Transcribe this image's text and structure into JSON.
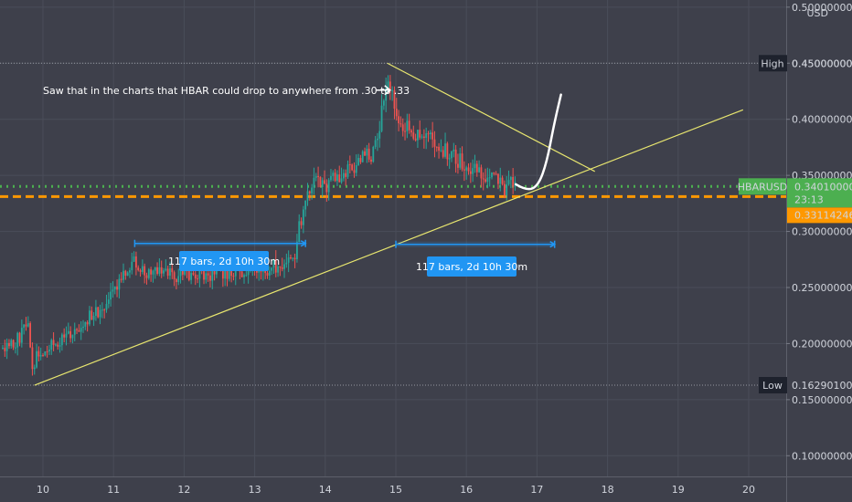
{
  "chart_data": {
    "type": "candlestick",
    "symbol": "HBARUSD",
    "currency": "USD",
    "x_ticks": [
      "10",
      "11",
      "12",
      "13",
      "14",
      "15",
      "16",
      "17",
      "18",
      "19",
      "20"
    ],
    "y_ticks": [
      "0.10000000",
      "0.15000000",
      "0.20000000",
      "0.25000000",
      "0.30000000",
      "0.35000000",
      "0.40000000",
      "0.45000000",
      "0.50000000"
    ],
    "ylim": [
      0.078,
      0.51
    ],
    "xlim": [
      9.43,
      20.5
    ],
    "grid": true,
    "high": {
      "label": "High",
      "value": "0.45000000",
      "price": 0.45
    },
    "low": {
      "label": "Low",
      "value": "0.16290100",
      "price": 0.1629
    },
    "last_price": {
      "symbol": "HBARUSD",
      "value": "0.34010000",
      "price": 0.3401,
      "countdown": "23:13",
      "color": "#4caf50"
    },
    "support_level": {
      "value": "0.33114246",
      "price": 0.3311,
      "color": "#ff9800"
    },
    "price_path": [
      [
        9.43,
        0.196
      ],
      [
        9.6,
        0.2
      ],
      [
        9.72,
        0.212
      ],
      [
        9.78,
        0.222
      ],
      [
        9.82,
        0.196
      ],
      [
        9.86,
        0.176
      ],
      [
        9.9,
        0.192
      ],
      [
        10.05,
        0.196
      ],
      [
        10.2,
        0.199
      ],
      [
        10.35,
        0.205
      ],
      [
        10.48,
        0.214
      ],
      [
        10.6,
        0.222
      ],
      [
        10.75,
        0.227
      ],
      [
        10.9,
        0.235
      ],
      [
        11.02,
        0.247
      ],
      [
        11.1,
        0.26
      ],
      [
        11.18,
        0.268
      ],
      [
        11.3,
        0.275
      ],
      [
        11.42,
        0.262
      ],
      [
        11.55,
        0.265
      ],
      [
        11.7,
        0.269
      ],
      [
        11.85,
        0.258
      ],
      [
        12.0,
        0.262
      ],
      [
        12.15,
        0.265
      ],
      [
        12.3,
        0.26
      ],
      [
        12.5,
        0.264
      ],
      [
        12.7,
        0.265
      ],
      [
        12.9,
        0.263
      ],
      [
        13.1,
        0.266
      ],
      [
        13.3,
        0.268
      ],
      [
        13.45,
        0.272
      ],
      [
        13.55,
        0.275
      ],
      [
        13.62,
        0.3
      ],
      [
        13.7,
        0.318
      ],
      [
        13.78,
        0.34
      ],
      [
        13.86,
        0.346
      ],
      [
        13.95,
        0.34
      ],
      [
        14.1,
        0.345
      ],
      [
        14.25,
        0.348
      ],
      [
        14.4,
        0.356
      ],
      [
        14.55,
        0.366
      ],
      [
        14.68,
        0.37
      ],
      [
        14.76,
        0.385
      ],
      [
        14.82,
        0.415
      ],
      [
        14.86,
        0.435
      ],
      [
        14.92,
        0.425
      ],
      [
        15.0,
        0.405
      ],
      [
        15.1,
        0.392
      ],
      [
        15.2,
        0.39
      ],
      [
        15.35,
        0.386
      ],
      [
        15.5,
        0.38
      ],
      [
        15.65,
        0.374
      ],
      [
        15.8,
        0.367
      ],
      [
        15.95,
        0.362
      ],
      [
        16.1,
        0.356
      ],
      [
        16.25,
        0.353
      ],
      [
        16.35,
        0.346
      ],
      [
        16.45,
        0.342
      ],
      [
        16.55,
        0.338
      ],
      [
        16.62,
        0.342
      ],
      [
        16.7,
        0.341
      ]
    ],
    "x_range_mark": {
      "x": [
        11.3,
        13.72
      ],
      "price": 0.2893,
      "label": "117 bars, 2d 10h 30m"
    },
    "projected_range_mark": {
      "x": [
        15.0,
        17.25
      ],
      "price": 0.2885,
      "label": "117 bars, 2d 10h 30m"
    },
    "lines": [
      {
        "name": "uptrend",
        "from": [
          9.88,
          0.1629
        ],
        "to": [
          19.92,
          0.4085
        ],
        "color": "#e8e66f"
      },
      {
        "name": "downtrend",
        "from": [
          14.88,
          0.45
        ],
        "to": [
          17.82,
          0.3535
        ],
        "color": "#e8e66f"
      }
    ],
    "projection": [
      [
        16.7,
        0.342
      ],
      [
        16.86,
        0.336
      ],
      [
        17.02,
        0.341
      ],
      [
        17.14,
        0.362
      ],
      [
        17.24,
        0.395
      ],
      [
        17.34,
        0.422
      ]
    ],
    "annotation": {
      "text": "Saw that in the charts that HBAR could drop to anywhere from .30 to .33",
      "point": [
        14.92,
        0.426
      ]
    }
  }
}
